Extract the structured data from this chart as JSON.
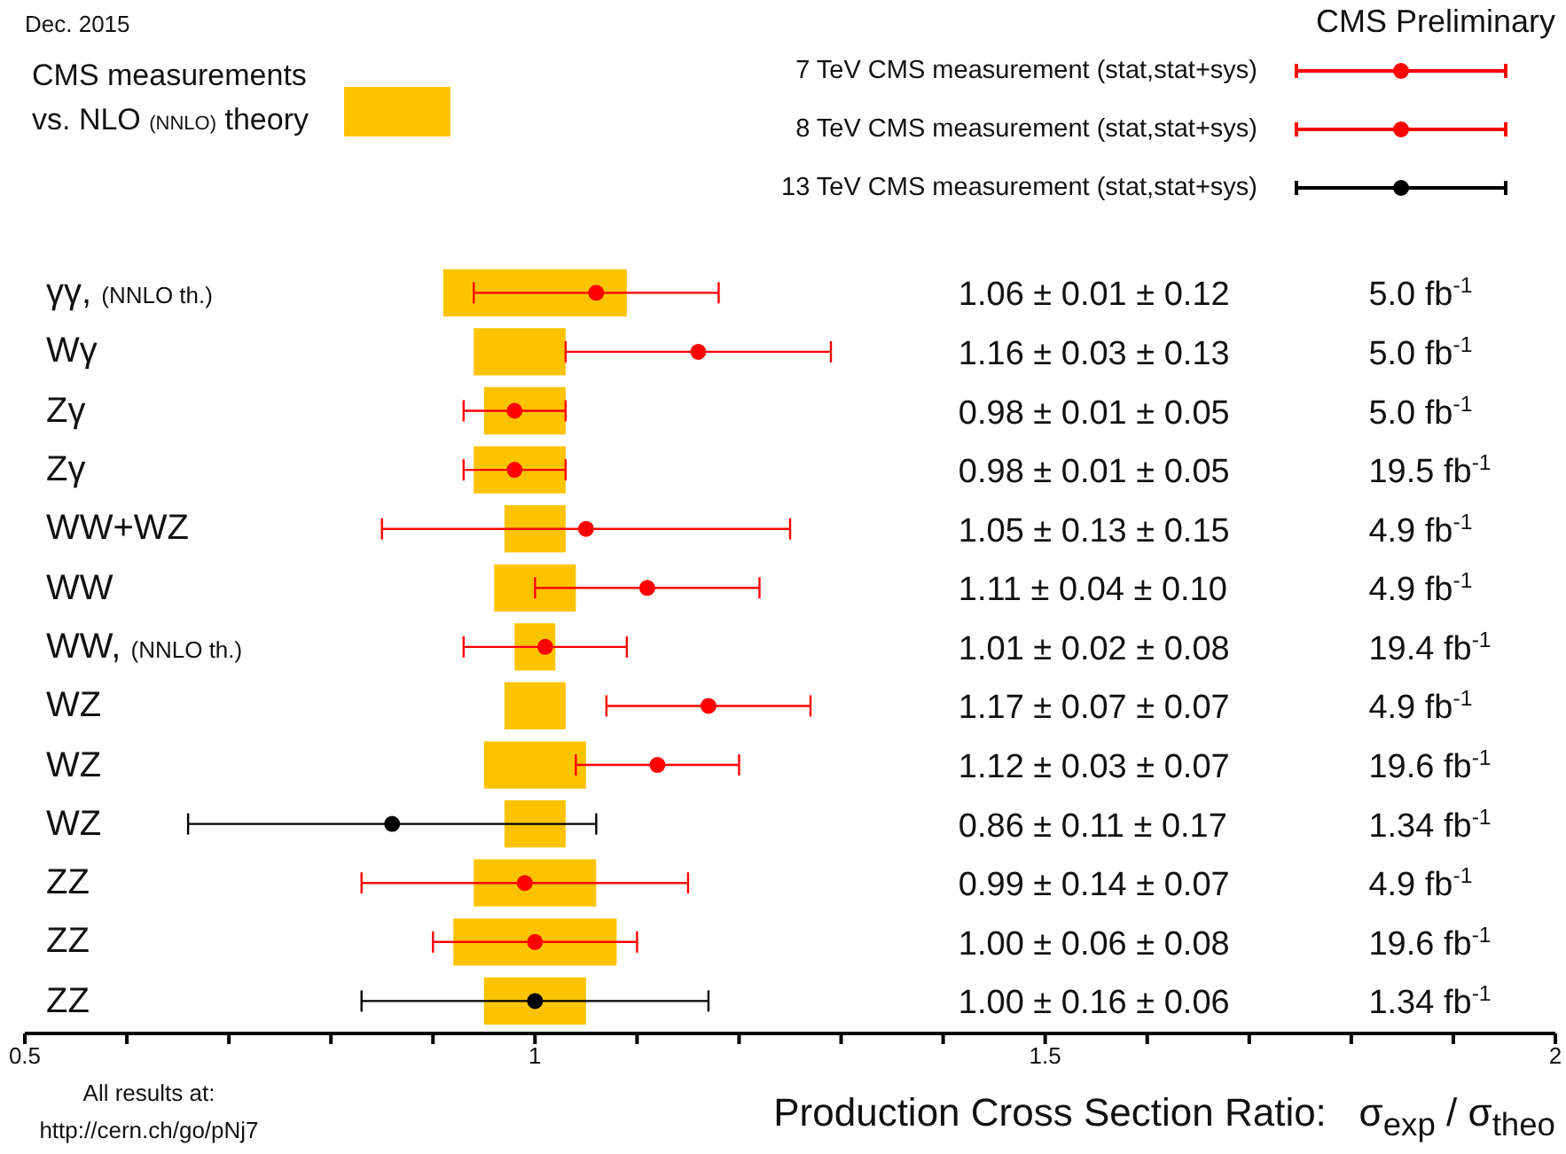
{
  "chart_data": {
    "type": "scatter",
    "orientation": "horizontal",
    "xlabel": "Production Cross Section Ratio:   σ$_{exp}$ / σ$_{theo}$",
    "annotations": [
      "Dec. 2015",
      "CMS Preliminary",
      "All results at:\nhttp://cern.ch/go/pNj7"
    ],
    "categories": [
      "γγ, (NNLO th.)",
      "Wγ",
      "Zγ",
      "Zγ",
      "WW+WZ",
      "WW",
      "WW, (NNLO th.)",
      "WZ",
      "WZ",
      "WZ",
      "ZZ",
      "ZZ",
      "ZZ"
    ],
    "xlim": [
      0.5,
      2
    ],
    "xticks": [
      {
        "value": 0.5,
        "label": "0.5"
      },
      {
        "value": 0.6,
        "label": null
      },
      {
        "value": 0.7,
        "label": null
      },
      {
        "value": 0.8,
        "label": null
      },
      {
        "value": 0.9,
        "label": null
      },
      1,
      {
        "value": 1.1,
        "label": null
      },
      {
        "value": 1.2,
        "label": null
      },
      {
        "value": 1.3,
        "label": null
      },
      {
        "value": 1.4,
        "label": null
      },
      1.5,
      {
        "value": 1.6,
        "label": null
      },
      {
        "value": 1.7,
        "label": null
      },
      {
        "value": 1.8,
        "label": null
      },
      {
        "value": 1.9,
        "label": null
      },
      2
    ],
    "grid": false,
    "legend": "top",
    "marker": "circle",
    "series": [
      {
        "type": "bar",
        "name": "CMS measurements\nvs. NLO (NNLO) theory",
        "color": "#fcc400",
        "base": [
          0.91,
          0.94,
          0.95,
          0.94,
          0.97,
          0.96,
          0.98,
          0.97,
          0.95,
          0.97,
          0.94,
          0.92,
          0.95
        ],
        "values": [
          0.18,
          0.09,
          0.08,
          0.09,
          0.06,
          0.08,
          0.04,
          0.06,
          0.1,
          0.06,
          0.12,
          0.16,
          0.1
        ]
      },
      {
        "type": "scatter",
        "name": "7 TeV CMS measurement (stat,stat+sys)",
        "color": "#ff0000",
        "values": [
          1.06,
          1.16,
          0.98,
          null,
          1.05,
          1.11,
          null,
          1.17,
          null,
          null,
          0.99,
          null,
          null
        ],
        "errors": [
          0.12,
          0.13,
          0.05,
          null,
          0.2,
          0.11,
          null,
          0.1,
          null,
          null,
          0.16,
          null,
          null
        ],
        "value_labels": [
          "1.06 ± 0.01 ± 0.12   5.0 fb$^{-1}$",
          "1.16 ± 0.03 ± 0.13   5.0 fb$^{-1}$",
          "0.98 ± 0.01 ± 0.05   5.0 fb$^{-1}$",
          null,
          "1.05 ± 0.13 ± 0.15   4.9 fb$^{-1}$",
          "1.11 ± 0.04 ± 0.10   4.9 fb$^{-1}$",
          null,
          "1.17 ± 0.07 ± 0.07   4.9 fb$^{-1}$",
          null,
          null,
          "0.99 ± 0.14 ± 0.07   4.9 fb$^{-1}$",
          null,
          null
        ]
      },
      {
        "type": "scatter",
        "name": "8 TeV CMS measurement (stat,stat+sys)",
        "color": "#ff0000",
        "values": [
          null,
          null,
          null,
          0.98,
          null,
          null,
          1.01,
          null,
          1.12,
          null,
          null,
          1.0,
          null
        ],
        "errors": [
          null,
          null,
          null,
          0.05,
          null,
          null,
          0.08,
          null,
          0.08,
          null,
          null,
          0.1,
          null
        ],
        "value_labels": [
          null,
          null,
          null,
          "0.98 ± 0.01 ± 0.05   19.5 fb$^{-1}$",
          null,
          null,
          "1.01 ± 0.02 ± 0.08   19.4 fb$^{-1}$",
          null,
          "1.12 ± 0.03 ± 0.07   19.6 fb$^{-1}$",
          null,
          null,
          "1.00 ± 0.06 ± 0.08   19.6 fb$^{-1}$",
          null
        ]
      },
      {
        "type": "scatter",
        "name": "13 TeV CMS measurement (stat,stat+sys)",
        "color": "#000000",
        "values": [
          null,
          null,
          null,
          null,
          null,
          null,
          null,
          null,
          null,
          0.86,
          null,
          null,
          1.0
        ],
        "errors": [
          null,
          null,
          null,
          null,
          null,
          null,
          null,
          null,
          null,
          0.2,
          null,
          null,
          0.17
        ],
        "value_labels": [
          null,
          null,
          null,
          null,
          null,
          null,
          null,
          null,
          null,
          "0.86 ± 0.11 ± 0.17   1.34 fb$^{-1}$",
          null,
          null,
          "1.00 ± 0.16 ± 0.06   1.34 fb$^{-1}$"
        ]
      }
    ]
  }
}
